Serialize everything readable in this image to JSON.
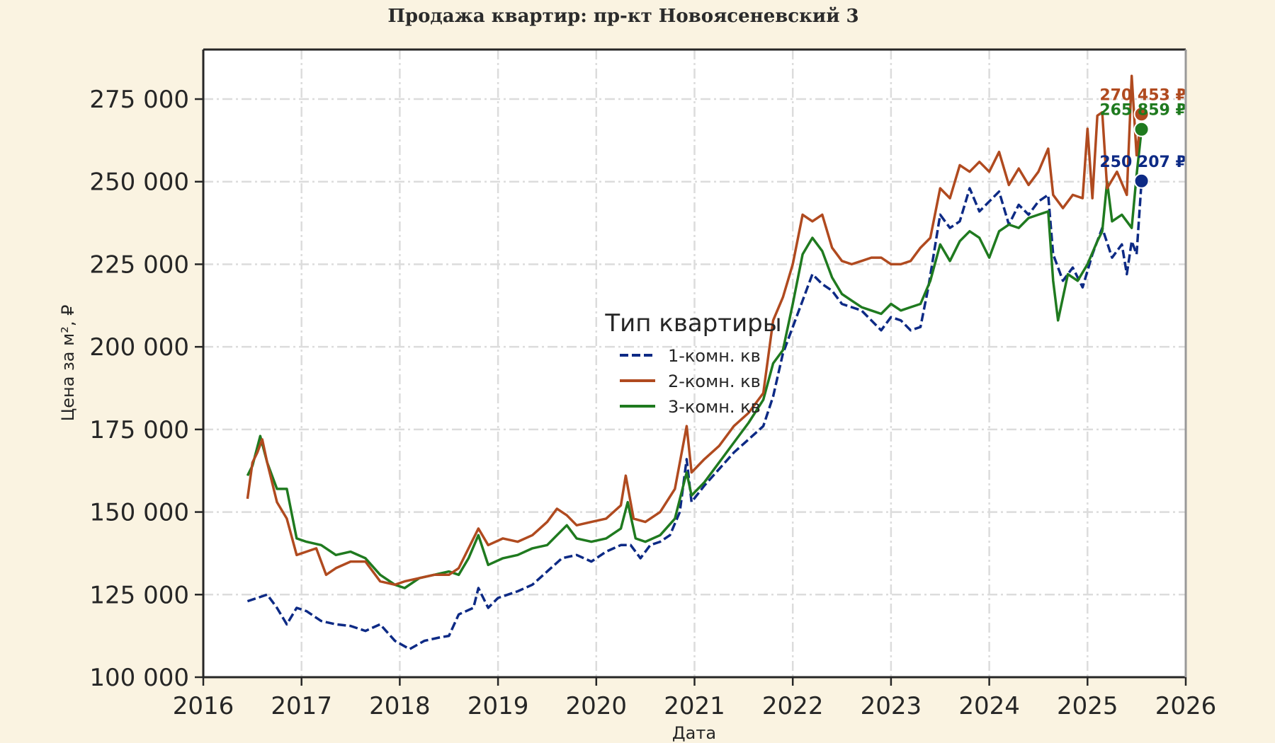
{
  "chart_data": {
    "type": "line",
    "title": "Продажа квартир: пр-кт Новоясеневский 3",
    "xlabel": "Дата",
    "ylabel": "Цена за м², ₽",
    "xlim": [
      2016,
      2026
    ],
    "ylim": [
      100000,
      290000
    ],
    "x_ticks": [
      2016,
      2017,
      2018,
      2019,
      2020,
      2021,
      2022,
      2023,
      2024,
      2025,
      2026
    ],
    "x_tick_labels": [
      "2016",
      "2017",
      "2018",
      "2019",
      "2020",
      "2021",
      "2022",
      "2023",
      "2024",
      "2025",
      "2026"
    ],
    "y_ticks": [
      100000,
      125000,
      150000,
      175000,
      200000,
      225000,
      250000,
      275000
    ],
    "y_tick_labels": [
      "100 000",
      "125 000",
      "150 000",
      "175 000",
      "200 000",
      "225 000",
      "250 000",
      "275 000"
    ],
    "grid": true,
    "legend": {
      "title": "Тип квартиры",
      "placement": "center"
    },
    "series": [
      {
        "name": "1-комн. кв",
        "color": "#0d2a85",
        "dash": "dashed",
        "last_value": 250207,
        "last_label": "250 207 ₽",
        "points": [
          [
            2016.45,
            123000
          ],
          [
            2016.55,
            124000
          ],
          [
            2016.65,
            125000
          ],
          [
            2016.75,
            121000
          ],
          [
            2016.85,
            116000
          ],
          [
            2016.95,
            121000
          ],
          [
            2017.05,
            120000
          ],
          [
            2017.2,
            117000
          ],
          [
            2017.35,
            116000
          ],
          [
            2017.5,
            115500
          ],
          [
            2017.65,
            114000
          ],
          [
            2017.8,
            116000
          ],
          [
            2017.95,
            111000
          ],
          [
            2018.1,
            108500
          ],
          [
            2018.25,
            111000
          ],
          [
            2018.4,
            112000
          ],
          [
            2018.5,
            112500
          ],
          [
            2018.6,
            119000
          ],
          [
            2018.75,
            121000
          ],
          [
            2018.8,
            127000
          ],
          [
            2018.9,
            121000
          ],
          [
            2019.0,
            124000
          ],
          [
            2019.2,
            126000
          ],
          [
            2019.35,
            128000
          ],
          [
            2019.5,
            132000
          ],
          [
            2019.65,
            136000
          ],
          [
            2019.8,
            137000
          ],
          [
            2019.95,
            135000
          ],
          [
            2020.1,
            138000
          ],
          [
            2020.25,
            140000
          ],
          [
            2020.35,
            140000
          ],
          [
            2020.45,
            136000
          ],
          [
            2020.55,
            140000
          ],
          [
            2020.65,
            141000
          ],
          [
            2020.75,
            143000
          ],
          [
            2020.85,
            150000
          ],
          [
            2020.92,
            166000
          ],
          [
            2020.97,
            153000
          ],
          [
            2021.1,
            158000
          ],
          [
            2021.25,
            163000
          ],
          [
            2021.4,
            168000
          ],
          [
            2021.55,
            172000
          ],
          [
            2021.7,
            176000
          ],
          [
            2021.8,
            185000
          ],
          [
            2021.9,
            198000
          ],
          [
            2022.0,
            206000
          ],
          [
            2022.1,
            214000
          ],
          [
            2022.2,
            222000
          ],
          [
            2022.3,
            219000
          ],
          [
            2022.4,
            217000
          ],
          [
            2022.5,
            213000
          ],
          [
            2022.6,
            212000
          ],
          [
            2022.7,
            211000
          ],
          [
            2022.8,
            208000
          ],
          [
            2022.9,
            205000
          ],
          [
            2023.0,
            209000
          ],
          [
            2023.1,
            208000
          ],
          [
            2023.2,
            205000
          ],
          [
            2023.3,
            206000
          ],
          [
            2023.38,
            218000
          ],
          [
            2023.5,
            240000
          ],
          [
            2023.6,
            236000
          ],
          [
            2023.7,
            238000
          ],
          [
            2023.8,
            248000
          ],
          [
            2023.9,
            241000
          ],
          [
            2024.0,
            244000
          ],
          [
            2024.1,
            247000
          ],
          [
            2024.2,
            237000
          ],
          [
            2024.3,
            243000
          ],
          [
            2024.4,
            240000
          ],
          [
            2024.5,
            244000
          ],
          [
            2024.6,
            246000
          ],
          [
            2024.65,
            228000
          ],
          [
            2024.75,
            220000
          ],
          [
            2024.85,
            224000
          ],
          [
            2024.95,
            218000
          ],
          [
            2025.05,
            228000
          ],
          [
            2025.15,
            236000
          ],
          [
            2025.25,
            227000
          ],
          [
            2025.35,
            231000
          ],
          [
            2025.4,
            222000
          ],
          [
            2025.45,
            232000
          ],
          [
            2025.5,
            228000
          ],
          [
            2025.55,
            250207
          ]
        ]
      },
      {
        "name": "2-комн. кв",
        "color": "#b04a1f",
        "dash": "solid",
        "last_value": 270453,
        "last_label": "270 453 ₽",
        "points": [
          [
            2016.45,
            154000
          ],
          [
            2016.5,
            165000
          ],
          [
            2016.55,
            168000
          ],
          [
            2016.6,
            172000
          ],
          [
            2016.65,
            165000
          ],
          [
            2016.75,
            153000
          ],
          [
            2016.85,
            148000
          ],
          [
            2016.95,
            137000
          ],
          [
            2017.05,
            138000
          ],
          [
            2017.15,
            139000
          ],
          [
            2017.25,
            131000
          ],
          [
            2017.35,
            133000
          ],
          [
            2017.5,
            135000
          ],
          [
            2017.65,
            135000
          ],
          [
            2017.8,
            129000
          ],
          [
            2017.95,
            128000
          ],
          [
            2018.05,
            129000
          ],
          [
            2018.2,
            130000
          ],
          [
            2018.35,
            131000
          ],
          [
            2018.5,
            131000
          ],
          [
            2018.6,
            133000
          ],
          [
            2018.7,
            139000
          ],
          [
            2018.8,
            145000
          ],
          [
            2018.9,
            140000
          ],
          [
            2019.05,
            142000
          ],
          [
            2019.2,
            141000
          ],
          [
            2019.35,
            143000
          ],
          [
            2019.5,
            147000
          ],
          [
            2019.6,
            151000
          ],
          [
            2019.7,
            149000
          ],
          [
            2019.8,
            146000
          ],
          [
            2019.95,
            147000
          ],
          [
            2020.1,
            148000
          ],
          [
            2020.25,
            152000
          ],
          [
            2020.3,
            161000
          ],
          [
            2020.38,
            148000
          ],
          [
            2020.5,
            147000
          ],
          [
            2020.65,
            150000
          ],
          [
            2020.8,
            157000
          ],
          [
            2020.92,
            176000
          ],
          [
            2020.97,
            162000
          ],
          [
            2021.1,
            166000
          ],
          [
            2021.25,
            170000
          ],
          [
            2021.4,
            176000
          ],
          [
            2021.55,
            180000
          ],
          [
            2021.7,
            186000
          ],
          [
            2021.8,
            208000
          ],
          [
            2021.9,
            215000
          ],
          [
            2022.0,
            225000
          ],
          [
            2022.1,
            240000
          ],
          [
            2022.2,
            238000
          ],
          [
            2022.3,
            240000
          ],
          [
            2022.4,
            230000
          ],
          [
            2022.5,
            226000
          ],
          [
            2022.6,
            225000
          ],
          [
            2022.7,
            226000
          ],
          [
            2022.8,
            227000
          ],
          [
            2022.9,
            227000
          ],
          [
            2023.0,
            225000
          ],
          [
            2023.1,
            225000
          ],
          [
            2023.2,
            226000
          ],
          [
            2023.3,
            230000
          ],
          [
            2023.4,
            233000
          ],
          [
            2023.5,
            248000
          ],
          [
            2023.6,
            245000
          ],
          [
            2023.7,
            255000
          ],
          [
            2023.8,
            253000
          ],
          [
            2023.9,
            256000
          ],
          [
            2024.0,
            253000
          ],
          [
            2024.1,
            259000
          ],
          [
            2024.2,
            249000
          ],
          [
            2024.3,
            254000
          ],
          [
            2024.4,
            249000
          ],
          [
            2024.5,
            253000
          ],
          [
            2024.6,
            260000
          ],
          [
            2024.65,
            246000
          ],
          [
            2024.75,
            242000
          ],
          [
            2024.85,
            246000
          ],
          [
            2024.95,
            245000
          ],
          [
            2025.0,
            266000
          ],
          [
            2025.05,
            245000
          ],
          [
            2025.1,
            270000
          ],
          [
            2025.15,
            271000
          ],
          [
            2025.2,
            248000
          ],
          [
            2025.3,
            253000
          ],
          [
            2025.4,
            246000
          ],
          [
            2025.45,
            282000
          ],
          [
            2025.5,
            258000
          ],
          [
            2025.55,
            270453
          ]
        ]
      },
      {
        "name": "3-комн. кв",
        "color": "#1f7a1f",
        "dash": "solid",
        "last_value": 265859,
        "last_label": "265 859 ₽",
        "points": [
          [
            2016.45,
            161000
          ],
          [
            2016.5,
            164000
          ],
          [
            2016.58,
            173000
          ],
          [
            2016.65,
            165000
          ],
          [
            2016.75,
            157000
          ],
          [
            2016.85,
            157000
          ],
          [
            2016.95,
            142000
          ],
          [
            2017.05,
            141000
          ],
          [
            2017.2,
            140000
          ],
          [
            2017.35,
            137000
          ],
          [
            2017.5,
            138000
          ],
          [
            2017.65,
            136000
          ],
          [
            2017.8,
            131000
          ],
          [
            2017.95,
            128000
          ],
          [
            2018.05,
            127000
          ],
          [
            2018.2,
            130000
          ],
          [
            2018.35,
            131000
          ],
          [
            2018.5,
            132000
          ],
          [
            2018.6,
            131000
          ],
          [
            2018.7,
            136000
          ],
          [
            2018.8,
            143000
          ],
          [
            2018.9,
            134000
          ],
          [
            2019.05,
            136000
          ],
          [
            2019.2,
            137000
          ],
          [
            2019.35,
            139000
          ],
          [
            2019.5,
            140000
          ],
          [
            2019.6,
            143000
          ],
          [
            2019.7,
            146000
          ],
          [
            2019.8,
            142000
          ],
          [
            2019.95,
            141000
          ],
          [
            2020.1,
            142000
          ],
          [
            2020.25,
            145000
          ],
          [
            2020.32,
            153000
          ],
          [
            2020.4,
            142000
          ],
          [
            2020.5,
            141000
          ],
          [
            2020.65,
            143000
          ],
          [
            2020.8,
            148000
          ],
          [
            2020.92,
            162000
          ],
          [
            2020.97,
            155000
          ],
          [
            2021.1,
            159000
          ],
          [
            2021.25,
            165000
          ],
          [
            2021.4,
            171000
          ],
          [
            2021.55,
            177000
          ],
          [
            2021.7,
            184000
          ],
          [
            2021.8,
            195000
          ],
          [
            2021.9,
            199000
          ],
          [
            2022.0,
            213000
          ],
          [
            2022.1,
            228000
          ],
          [
            2022.2,
            233000
          ],
          [
            2022.3,
            229000
          ],
          [
            2022.4,
            221000
          ],
          [
            2022.5,
            216000
          ],
          [
            2022.6,
            214000
          ],
          [
            2022.7,
            212000
          ],
          [
            2022.8,
            211000
          ],
          [
            2022.9,
            210000
          ],
          [
            2023.0,
            213000
          ],
          [
            2023.1,
            211000
          ],
          [
            2023.2,
            212000
          ],
          [
            2023.3,
            213000
          ],
          [
            2023.4,
            220000
          ],
          [
            2023.5,
            231000
          ],
          [
            2023.6,
            226000
          ],
          [
            2023.7,
            232000
          ],
          [
            2023.8,
            235000
          ],
          [
            2023.9,
            233000
          ],
          [
            2024.0,
            227000
          ],
          [
            2024.1,
            235000
          ],
          [
            2024.2,
            237000
          ],
          [
            2024.3,
            236000
          ],
          [
            2024.4,
            239000
          ],
          [
            2024.5,
            240000
          ],
          [
            2024.6,
            241000
          ],
          [
            2024.65,
            220000
          ],
          [
            2024.7,
            208000
          ],
          [
            2024.8,
            222000
          ],
          [
            2024.9,
            220000
          ],
          [
            2025.0,
            225000
          ],
          [
            2025.1,
            232000
          ],
          [
            2025.15,
            235000
          ],
          [
            2025.2,
            250000
          ],
          [
            2025.25,
            238000
          ],
          [
            2025.35,
            240000
          ],
          [
            2025.45,
            236000
          ],
          [
            2025.5,
            252000
          ],
          [
            2025.55,
            265859
          ]
        ]
      }
    ]
  }
}
